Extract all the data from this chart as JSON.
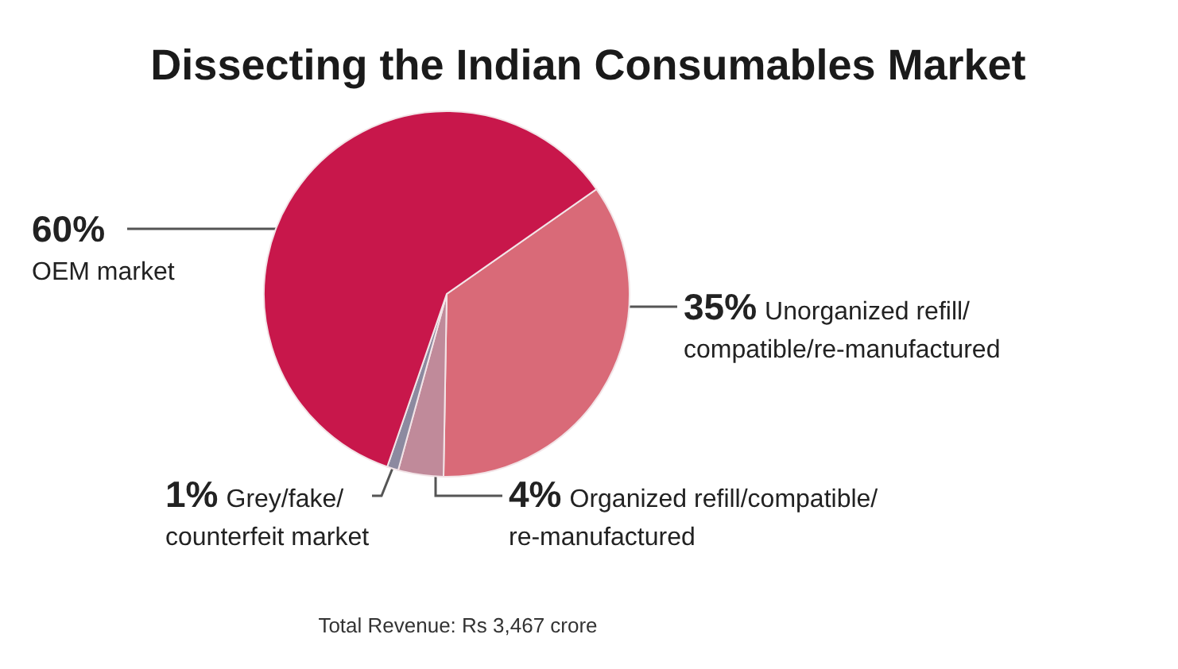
{
  "chart_data": {
    "type": "pie",
    "title": "Dissecting the Indian Consumables Market",
    "categories": [
      "Unorganized refill/\ncompatible/re-manufactured",
      "Organized refill/compatible/\nre-manufactured",
      "Grey/fake/\ncounterfeit market",
      "OEM market"
    ],
    "values": [
      35,
      4,
      1,
      60
    ],
    "colors": [
      "#d96a78",
      "#c08a9a",
      "#8c8aa0",
      "#c8174b"
    ],
    "value_labels": [
      "35%",
      "4%",
      "1%",
      "60%"
    ],
    "annotations": [
      "Total Revenue: Rs 3,467 crore"
    ]
  }
}
